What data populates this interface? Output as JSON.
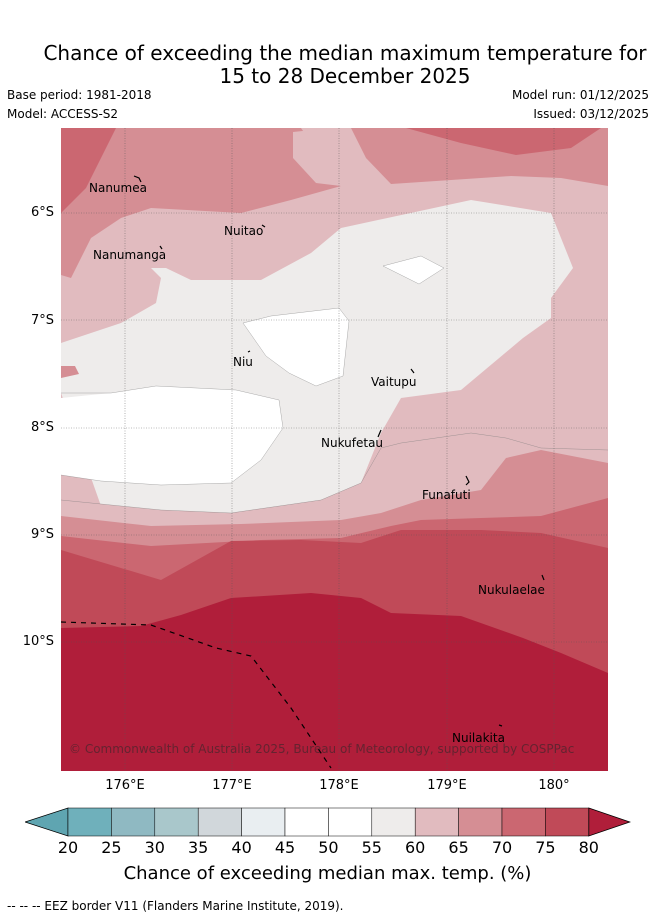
{
  "title": {
    "line1": "Chance of exceeding the median maximum temperature for",
    "line2": "15 to 28 December 2025"
  },
  "meta": {
    "base_period": "Base period: 1981-2018",
    "model": "Model: ACCESS-S2",
    "model_run": "Model run: 01/12/2025",
    "issued": "Issued: 03/12/2025"
  },
  "map": {
    "lat_labels": [
      "6°S",
      "7°S",
      "8°S",
      "9°S",
      "10°S"
    ],
    "lon_labels": [
      "176°E",
      "177°E",
      "178°E",
      "179°E",
      "180°"
    ],
    "places": [
      {
        "name": "Nanumea"
      },
      {
        "name": "Nuitao"
      },
      {
        "name": "Nanumanga"
      },
      {
        "name": "Niu"
      },
      {
        "name": "Vaitupu"
      },
      {
        "name": "Nukufetau"
      },
      {
        "name": "Funafuti"
      },
      {
        "name": "Nukulaelae"
      },
      {
        "name": "Nuilakita"
      }
    ],
    "copyright": "© Commonwealth of Australia 2025, Bureau of Meteorology, supported by COSPPac"
  },
  "colorbar": {
    "ticks": [
      "20",
      "25",
      "30",
      "35",
      "40",
      "45",
      "50",
      "55",
      "60",
      "65",
      "70",
      "75",
      "80"
    ],
    "colors": [
      "#5fa5b1",
      "#6fb0bb",
      "#8fb9c2",
      "#a9c7cb",
      "#d1d7db",
      "#e9eef1",
      "#ffffff",
      "#ffffff",
      "#eeeceb",
      "#e1bbbf",
      "#d58e94",
      "#cb6771",
      "#c04a58",
      "#b01e3a"
    ],
    "label": "Chance of exceeding median max. temp. (%)"
  },
  "footnote": "--  --  -- EEZ border V11 (Flanders Marine Institute, 2019)."
}
